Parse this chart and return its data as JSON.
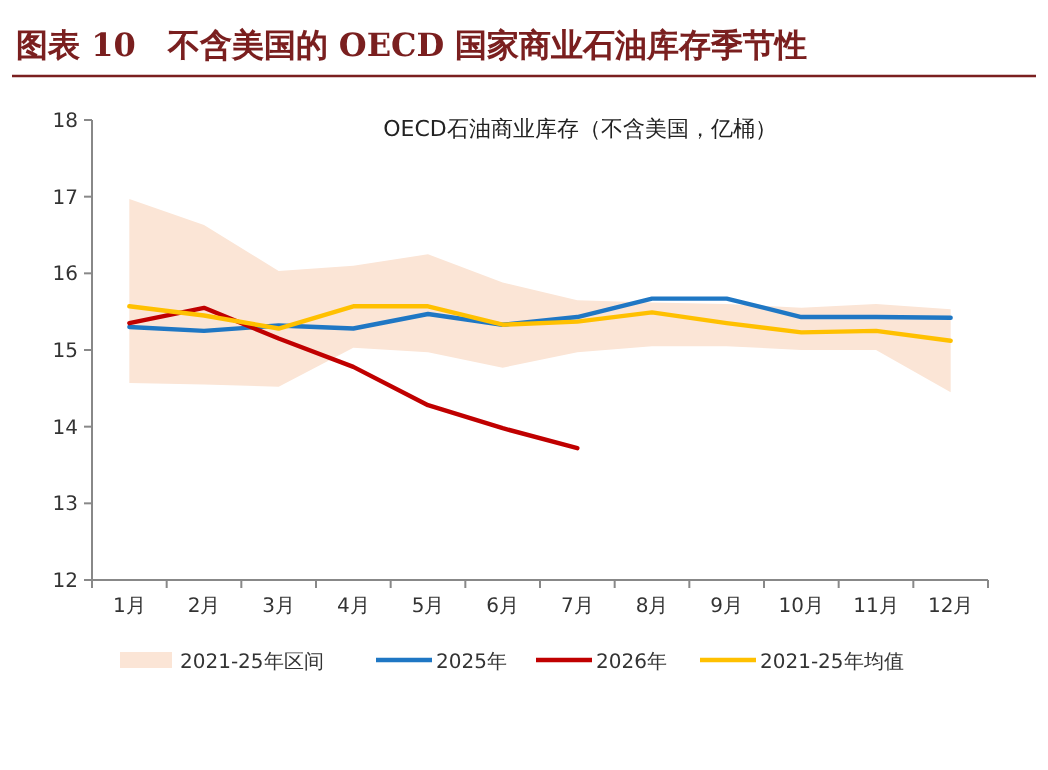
{
  "chart_data": {
    "type": "line",
    "title": "图表 10　不含美国的 OECD 国家商业石油库存季节性",
    "subtitle": "OECD石油商业库存（不含美国，亿桶）",
    "categories": [
      "1月",
      "2月",
      "3月",
      "4月",
      "5月",
      "6月",
      "7月",
      "8月",
      "9月",
      "10月",
      "11月",
      "12月"
    ],
    "series": [
      {
        "name": "2021-25年区间",
        "type": "area",
        "color": "#fbe5d6",
        "values": [
          null,
          null,
          null,
          null,
          null,
          null,
          null,
          null,
          null,
          null,
          null,
          null
        ],
        "lower": [
          14.57,
          14.55,
          14.52,
          15.03,
          14.97,
          14.77,
          14.97,
          15.05,
          15.05,
          15.0,
          15.0,
          14.45
        ],
        "upper": [
          16.97,
          16.63,
          16.03,
          16.1,
          16.25,
          15.88,
          15.65,
          15.62,
          15.6,
          15.55,
          15.6,
          15.53
        ]
      },
      {
        "name": "2025年",
        "color": "#1f77c4",
        "values": [
          15.3,
          15.25,
          15.32,
          15.28,
          15.47,
          15.33,
          15.43,
          15.67,
          15.67,
          15.43,
          15.43,
          15.42
        ]
      },
      {
        "name": "2026年",
        "color": "#c00000",
        "values": [
          15.35,
          15.55,
          15.15,
          14.78,
          14.28,
          13.98,
          13.72,
          null,
          null,
          null,
          null,
          null
        ]
      },
      {
        "name": "2021-25年均值",
        "color": "#ffc000",
        "values": [
          15.57,
          15.45,
          15.28,
          15.57,
          15.57,
          15.33,
          15.37,
          15.49,
          15.35,
          15.23,
          15.25,
          15.12
        ]
      }
    ],
    "ylim": [
      12,
      18
    ],
    "yticks": [
      12,
      13,
      14,
      15,
      16,
      17,
      18
    ],
    "grid": false,
    "legend": "bottom",
    "marker": "none",
    "line_style": "solid"
  }
}
